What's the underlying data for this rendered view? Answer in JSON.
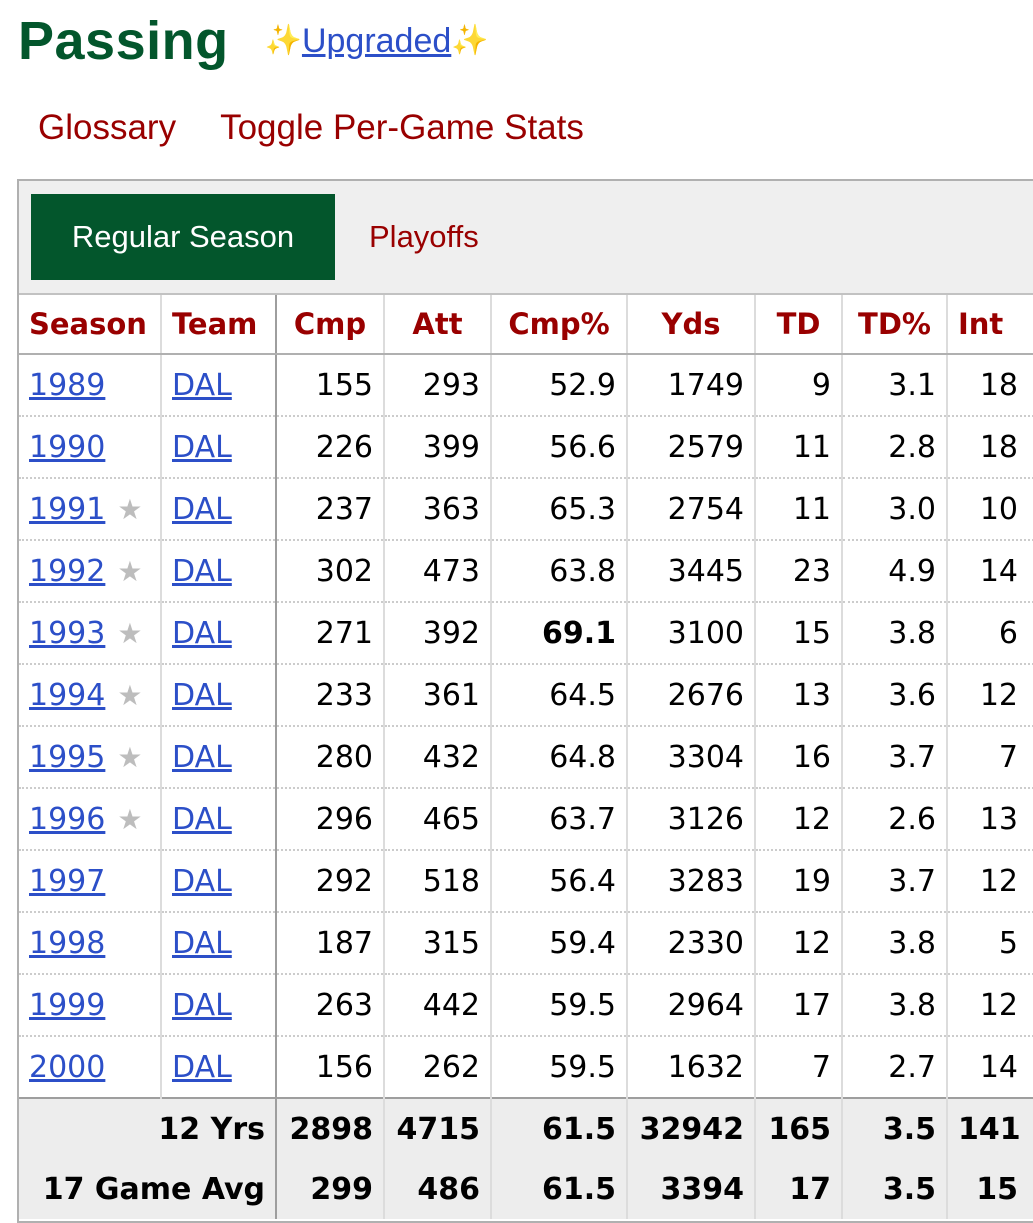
{
  "heading": {
    "title": "Passing",
    "sparkle_left": "✨",
    "upgraded_link": "Upgraded",
    "sparkle_right": "✨"
  },
  "links": {
    "glossary": "Glossary",
    "toggle": "Toggle Per-Game Stats"
  },
  "tabs": {
    "regular": "Regular Season",
    "playoffs": "Playoffs"
  },
  "colors": {
    "accent_green": "#03562c",
    "header_red": "#990000",
    "link_blue": "#2c4fc8"
  },
  "table": {
    "headers": [
      "Season",
      "Team",
      "Cmp",
      "Att",
      "Cmp%",
      "Yds",
      "TD",
      "TD%",
      "Int"
    ],
    "rows": [
      {
        "season": "1989",
        "star": "",
        "team": "DAL",
        "cmp": "155",
        "att": "293",
        "cmp_pct": "52.9",
        "yds": "1749",
        "td": "9",
        "td_pct": "3.1",
        "int": "18"
      },
      {
        "season": "1990",
        "star": "",
        "team": "DAL",
        "cmp": "226",
        "att": "399",
        "cmp_pct": "56.6",
        "yds": "2579",
        "td": "11",
        "td_pct": "2.8",
        "int": "18"
      },
      {
        "season": "1991",
        "star": "★",
        "team": "DAL",
        "cmp": "237",
        "att": "363",
        "cmp_pct": "65.3",
        "yds": "2754",
        "td": "11",
        "td_pct": "3.0",
        "int": "10"
      },
      {
        "season": "1992",
        "star": "★",
        "team": "DAL",
        "cmp": "302",
        "att": "473",
        "cmp_pct": "63.8",
        "yds": "3445",
        "td": "23",
        "td_pct": "4.9",
        "int": "14"
      },
      {
        "season": "1993",
        "star": "★",
        "team": "DAL",
        "cmp": "271",
        "att": "392",
        "cmp_pct": "69.1",
        "yds": "3100",
        "td": "15",
        "td_pct": "3.8",
        "int": "6"
      },
      {
        "season": "1994",
        "star": "★",
        "team": "DAL",
        "cmp": "233",
        "att": "361",
        "cmp_pct": "64.5",
        "yds": "2676",
        "td": "13",
        "td_pct": "3.6",
        "int": "12"
      },
      {
        "season": "1995",
        "star": "★",
        "team": "DAL",
        "cmp": "280",
        "att": "432",
        "cmp_pct": "64.8",
        "yds": "3304",
        "td": "16",
        "td_pct": "3.7",
        "int": "7"
      },
      {
        "season": "1996",
        "star": "★",
        "team": "DAL",
        "cmp": "296",
        "att": "465",
        "cmp_pct": "63.7",
        "yds": "3126",
        "td": "12",
        "td_pct": "2.6",
        "int": "13"
      },
      {
        "season": "1997",
        "star": "",
        "team": "DAL",
        "cmp": "292",
        "att": "518",
        "cmp_pct": "56.4",
        "yds": "3283",
        "td": "19",
        "td_pct": "3.7",
        "int": "12"
      },
      {
        "season": "1998",
        "star": "",
        "team": "DAL",
        "cmp": "187",
        "att": "315",
        "cmp_pct": "59.4",
        "yds": "2330",
        "td": "12",
        "td_pct": "3.8",
        "int": "5"
      },
      {
        "season": "1999",
        "star": "",
        "team": "DAL",
        "cmp": "263",
        "att": "442",
        "cmp_pct": "59.5",
        "yds": "2964",
        "td": "17",
        "td_pct": "3.8",
        "int": "12"
      },
      {
        "season": "2000",
        "star": "",
        "team": "DAL",
        "cmp": "156",
        "att": "262",
        "cmp_pct": "59.5",
        "yds": "1632",
        "td": "7",
        "td_pct": "2.7",
        "int": "14"
      }
    ],
    "footer": [
      {
        "label": "12 Yrs",
        "cmp": "2898",
        "att": "4715",
        "cmp_pct": "61.5",
        "yds": "32942",
        "td": "165",
        "td_pct": "3.5",
        "int": "141"
      },
      {
        "label": "17 Game Avg",
        "cmp": "299",
        "att": "486",
        "cmp_pct": "61.5",
        "yds": "3394",
        "td": "17",
        "td_pct": "3.5",
        "int": "15"
      }
    ]
  }
}
